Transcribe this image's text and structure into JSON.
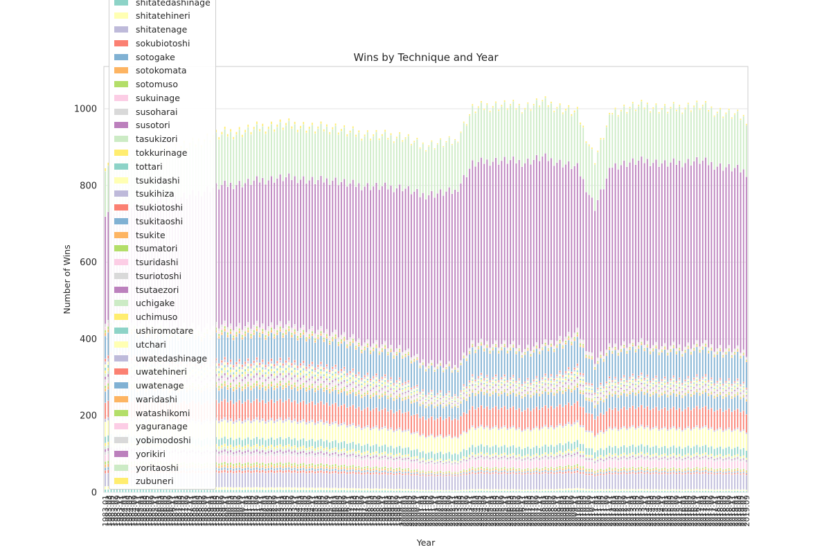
{
  "chart_data": {
    "type": "bar",
    "stacked": true,
    "title": "Wins by Technique and Year",
    "xlabel": "Year",
    "ylabel": "Number of Wins",
    "ylim": [
      0,
      1110
    ],
    "yticks": [
      0,
      200,
      400,
      600,
      800,
      1000
    ],
    "grid": true,
    "legend_position": "top-left",
    "x_start": {
      "year": 1983,
      "month": 1
    },
    "x_end": {
      "year": 2019,
      "month": 9
    },
    "months_per_year": [
      1,
      3,
      5,
      7,
      9,
      11
    ],
    "series": [
      {
        "name": "shitatedashinage",
        "color": "#8dd3c7"
      },
      {
        "name": "shitatehineri",
        "color": "#ffffb3"
      },
      {
        "name": "shitatenage",
        "color": "#bebada"
      },
      {
        "name": "sokubiotoshi",
        "color": "#fb8072"
      },
      {
        "name": "sotogake",
        "color": "#80b1d3"
      },
      {
        "name": "sotokomata",
        "color": "#fdb462"
      },
      {
        "name": "sotomuso",
        "color": "#b3de69"
      },
      {
        "name": "sukuinage",
        "color": "#fccde5"
      },
      {
        "name": "susoharai",
        "color": "#d9d9d9"
      },
      {
        "name": "susotori",
        "color": "#bc80bd"
      },
      {
        "name": "tasukizori",
        "color": "#ccebc5"
      },
      {
        "name": "tokkurinage",
        "color": "#ffed6f"
      },
      {
        "name": "tottari",
        "color": "#8dd3c7"
      },
      {
        "name": "tsukidashi",
        "color": "#ffffb3"
      },
      {
        "name": "tsukihiza",
        "color": "#bebada"
      },
      {
        "name": "tsukiotoshi",
        "color": "#fb8072"
      },
      {
        "name": "tsukitaoshi",
        "color": "#80b1d3"
      },
      {
        "name": "tsukite",
        "color": "#fdb462"
      },
      {
        "name": "tsumatori",
        "color": "#b3de69"
      },
      {
        "name": "tsuridashi",
        "color": "#fccde5"
      },
      {
        "name": "tsuriotoshi",
        "color": "#d9d9d9"
      },
      {
        "name": "tsutaezori",
        "color": "#bc80bd"
      },
      {
        "name": "uchigake",
        "color": "#ccebc5"
      },
      {
        "name": "uchimuso",
        "color": "#ffed6f"
      },
      {
        "name": "ushiromotare",
        "color": "#8dd3c7"
      },
      {
        "name": "utchari",
        "color": "#ffffb3"
      },
      {
        "name": "uwatedashinage",
        "color": "#bebada"
      },
      {
        "name": "uwatehineri",
        "color": "#fb8072"
      },
      {
        "name": "uwatenage",
        "color": "#80b1d3"
      },
      {
        "name": "waridashi",
        "color": "#fdb462"
      },
      {
        "name": "watashikomi",
        "color": "#b3de69"
      },
      {
        "name": "yaguranage",
        "color": "#fccde5"
      },
      {
        "name": "yobimodoshi",
        "color": "#d9d9d9"
      },
      {
        "name": "yorikiri",
        "color": "#bc80bd"
      },
      {
        "name": "yoritaoshi",
        "color": "#ccebc5"
      },
      {
        "name": "zubuneri",
        "color": "#ffed6f"
      }
    ],
    "total_trend": [
      [
        1983.0,
        860
      ],
      [
        1984.0,
        875
      ],
      [
        1985.0,
        880
      ],
      [
        1986.0,
        890
      ],
      [
        1987.0,
        900
      ],
      [
        1988.0,
        910
      ],
      [
        1989.0,
        930
      ],
      [
        1990.0,
        940
      ],
      [
        1991.0,
        945
      ],
      [
        1992.0,
        955
      ],
      [
        1993.0,
        960
      ],
      [
        1994.0,
        960
      ],
      [
        1995.0,
        950
      ],
      [
        1996.0,
        955
      ],
      [
        1997.0,
        940
      ],
      [
        1998.0,
        935
      ],
      [
        1999.0,
        930
      ],
      [
        2000.0,
        930
      ],
      [
        2001.0,
        905
      ],
      [
        2002.0,
        910
      ],
      [
        2003.0,
        915
      ],
      [
        2004.0,
        1000
      ],
      [
        2005.0,
        1010
      ],
      [
        2006.0,
        1010
      ],
      [
        2007.0,
        1005
      ],
      [
        2008.0,
        1020
      ],
      [
        2009.0,
        1005
      ],
      [
        2010.0,
        990
      ],
      [
        2011.0,
        870
      ],
      [
        2012.0,
        995
      ],
      [
        2013.0,
        1005
      ],
      [
        2014.0,
        1010
      ],
      [
        2015.0,
        1000
      ],
      [
        2016.0,
        1005
      ],
      [
        2017.0,
        1010
      ],
      [
        2018.0,
        995
      ],
      [
        2019.0,
        985
      ],
      [
        2019.7,
        975
      ]
    ],
    "yorikiri_trend": [
      [
        1983.0,
        280
      ],
      [
        1986.0,
        320
      ],
      [
        1989.0,
        360
      ],
      [
        1992.0,
        380
      ],
      [
        1995.0,
        390
      ],
      [
        2000.0,
        420
      ],
      [
        2004.0,
        470
      ],
      [
        2008.0,
        490
      ],
      [
        2011.0,
        400
      ],
      [
        2012.0,
        470
      ],
      [
        2016.0,
        480
      ],
      [
        2019.7,
        470
      ]
    ]
  }
}
